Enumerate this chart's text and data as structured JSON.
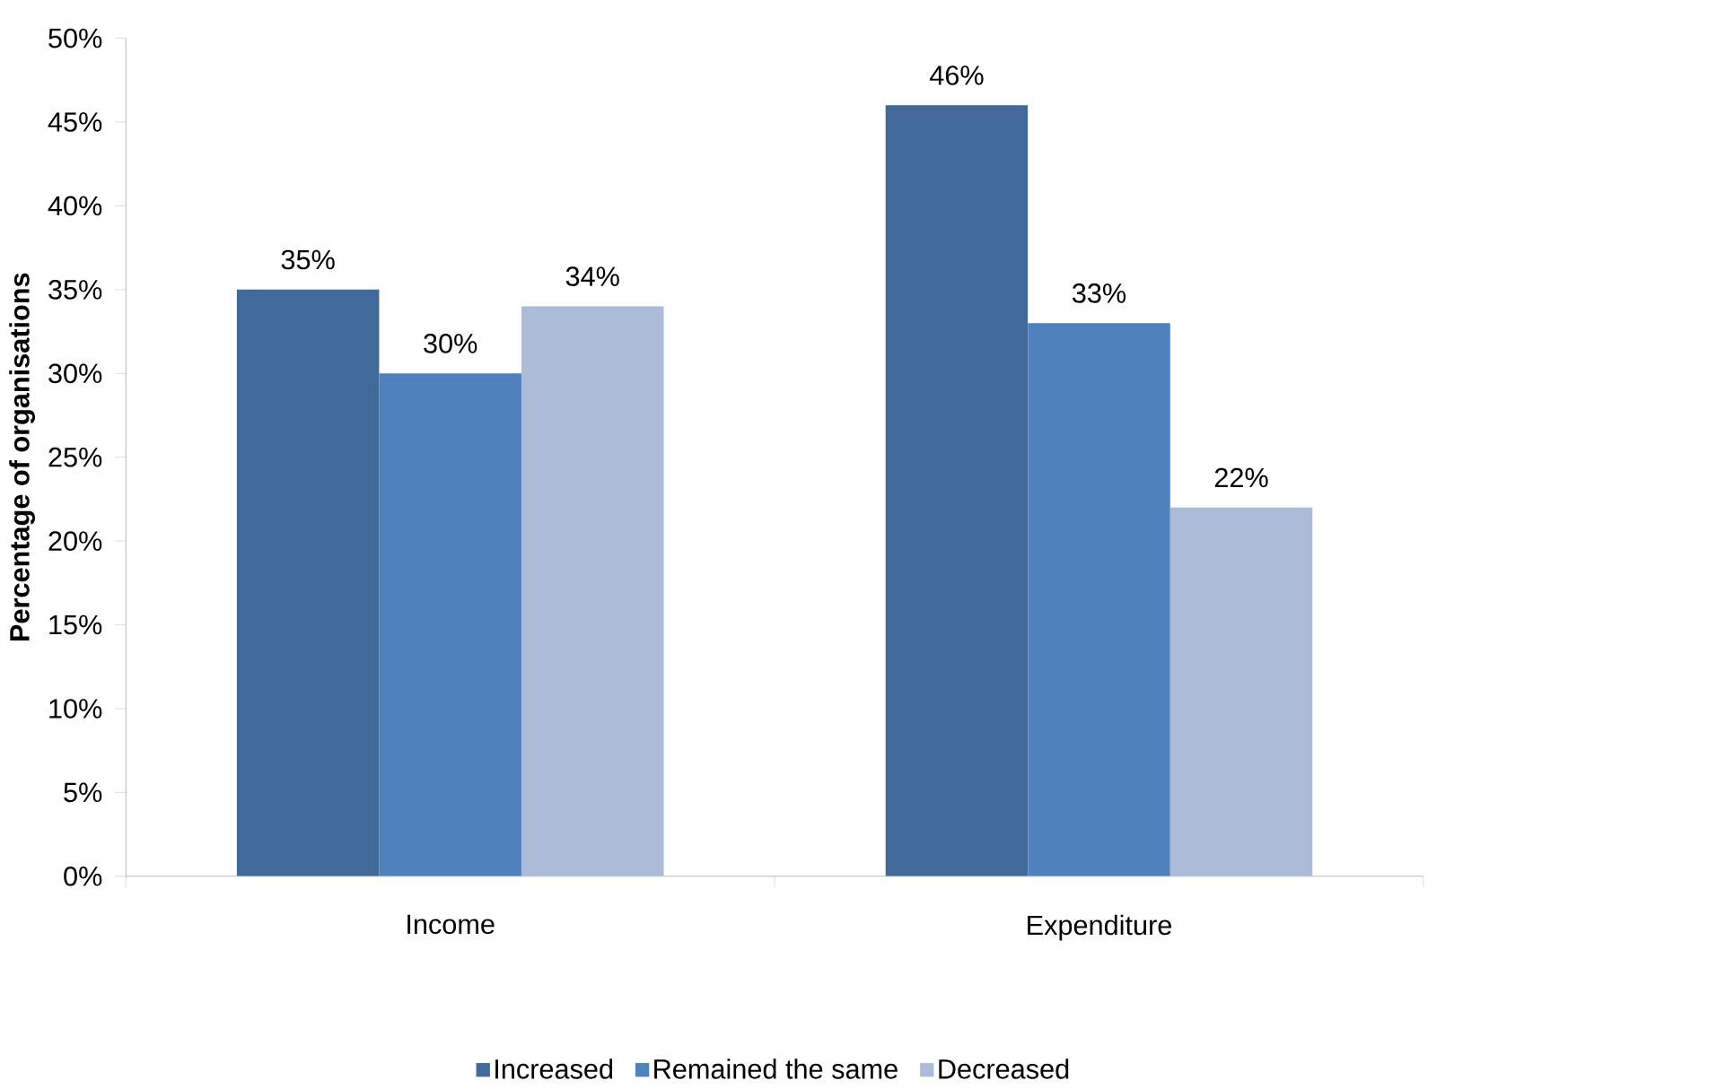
{
  "chart_data": {
    "type": "bar",
    "ylabel": "Percentage of organisations",
    "categories": [
      "Income",
      "Expenditure"
    ],
    "series": [
      {
        "name": "Increased",
        "color": "#41699a",
        "values": [
          35,
          46
        ],
        "value_labels": [
          "35%",
          "46%"
        ]
      },
      {
        "name": "Remained the same",
        "color": "#4f81bd",
        "values": [
          30,
          33
        ],
        "value_labels": [
          "30%",
          "33%"
        ]
      },
      {
        "name": "Decreased",
        "color": "#abbbd8",
        "values": [
          34,
          22
        ],
        "value_labels": [
          "34%",
          "22%"
        ]
      }
    ],
    "ylim": [
      0,
      50
    ],
    "yticks": [
      {
        "value": 0,
        "label": "0%"
      },
      {
        "value": 5,
        "label": "5%"
      },
      {
        "value": 10,
        "label": "10%"
      },
      {
        "value": 15,
        "label": "15%"
      },
      {
        "value": 20,
        "label": "20%"
      },
      {
        "value": 25,
        "label": "25%"
      },
      {
        "value": 30,
        "label": "30%"
      },
      {
        "value": 35,
        "label": "35%"
      },
      {
        "value": 40,
        "label": "40%"
      },
      {
        "value": 45,
        "label": "45%"
      },
      {
        "value": 50,
        "label": "50%"
      }
    ],
    "grid": false,
    "legend": "bottom"
  }
}
